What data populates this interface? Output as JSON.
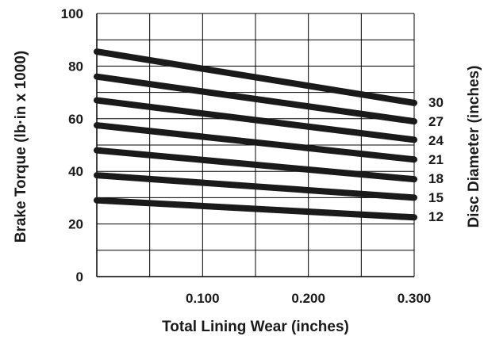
{
  "chart_data": {
    "type": "line",
    "title": "",
    "xlabel": "Total Lining Wear (inches)",
    "ylabel": "Brake Torque (lb·in x 1000)",
    "right_label": "Disc Diameter (inches)",
    "xlim": [
      0,
      0.3
    ],
    "ylim": [
      0,
      100
    ],
    "x_ticks": [
      0.1,
      0.2,
      0.3
    ],
    "x_tick_labels": [
      "0.100",
      "0.200",
      "0.300"
    ],
    "y_ticks": [
      0,
      20,
      40,
      60,
      80,
      100
    ],
    "y_tick_labels": [
      "0",
      "20",
      "40",
      "60",
      "80",
      "100"
    ],
    "grid": true,
    "x_grid": [
      0.05,
      0.1,
      0.15,
      0.2,
      0.25,
      0.3
    ],
    "y_grid": [
      10,
      20,
      30,
      40,
      50,
      60,
      70,
      80,
      90,
      100
    ],
    "line_color": "#1a1a1a",
    "grid_color": "#000000",
    "series": [
      {
        "name": "30",
        "x": [
          0,
          0.3
        ],
        "y": [
          85.5,
          66
        ]
      },
      {
        "name": "27",
        "x": [
          0,
          0.3
        ],
        "y": [
          76,
          59
        ]
      },
      {
        "name": "24",
        "x": [
          0,
          0.3
        ],
        "y": [
          67,
          52
        ]
      },
      {
        "name": "21",
        "x": [
          0,
          0.3
        ],
        "y": [
          57.5,
          44.5
        ]
      },
      {
        "name": "18",
        "x": [
          0,
          0.3
        ],
        "y": [
          48,
          37
        ]
      },
      {
        "name": "15",
        "x": [
          0,
          0.3
        ],
        "y": [
          38.5,
          30
        ]
      },
      {
        "name": "12",
        "x": [
          0,
          0.3
        ],
        "y": [
          29,
          22.5
        ]
      }
    ]
  }
}
